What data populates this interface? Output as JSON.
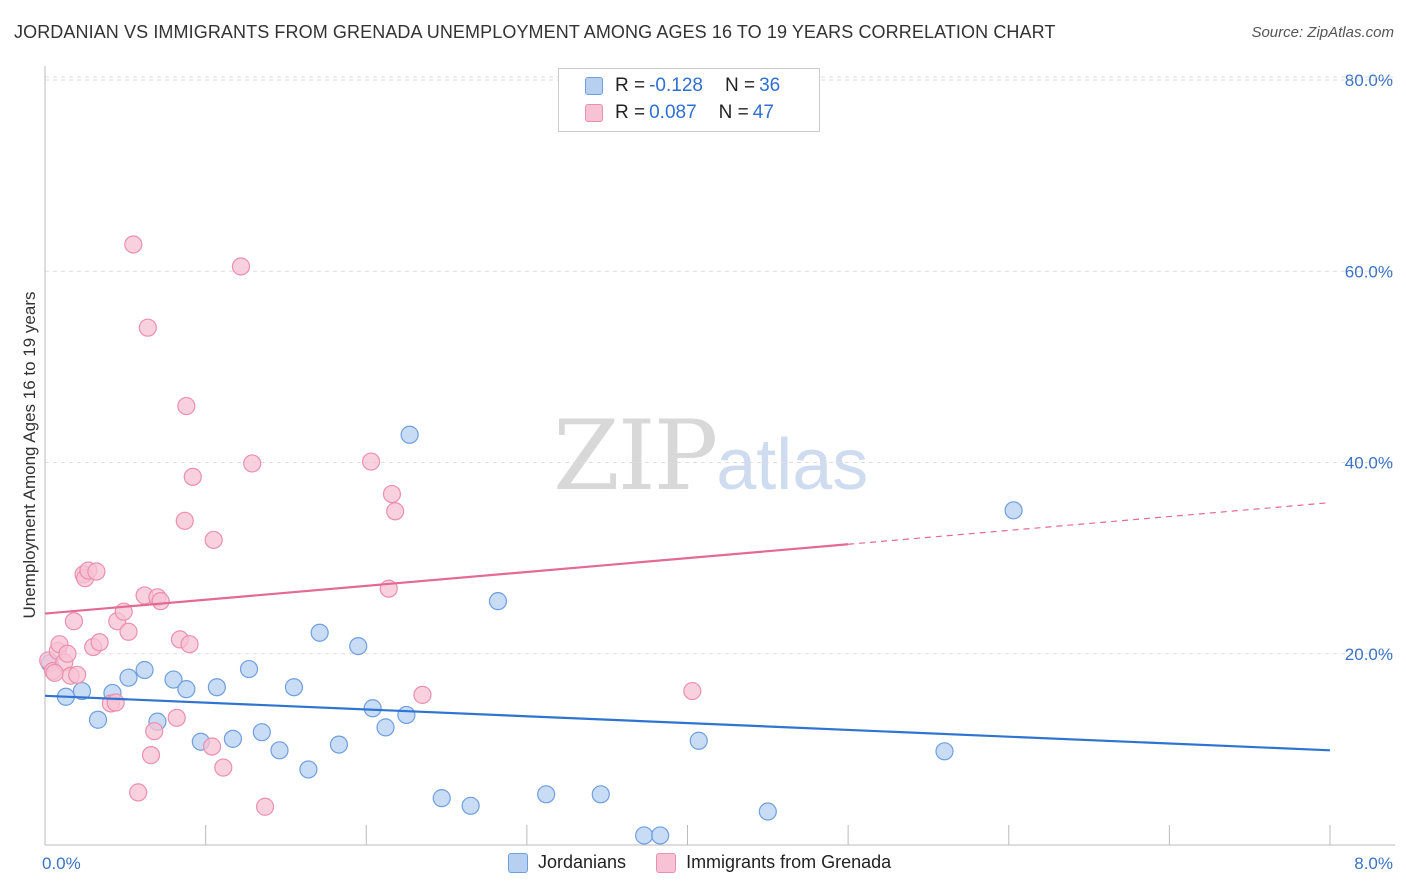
{
  "header": {
    "title": "JORDANIAN VS IMMIGRANTS FROM GRENADA UNEMPLOYMENT AMONG AGES 16 TO 19 YEARS CORRELATION CHART",
    "source": "Source: ZipAtlas.com"
  },
  "watermark": {
    "zip": "ZIP",
    "atlas": "atlas"
  },
  "colors": {
    "blue_fill": "#b7d0f2",
    "blue_stroke": "#6f9fe0",
    "blue_line": "#2f74d0",
    "pink_fill": "#f7c2d3",
    "pink_stroke": "#ec8fad",
    "pink_line": "#e36a93",
    "tick_label": "#3b72c4",
    "grid": "#dddddd"
  },
  "legend": {
    "rows": [
      {
        "r_label": "R =",
        "r_value": "-0.128",
        "n_label": "N =",
        "n_value": "36"
      },
      {
        "r_label": "R =",
        "r_value": "0.087",
        "n_label": "N =",
        "n_value": "47"
      }
    ]
  },
  "bottom_legend": {
    "series1": "Jordanians",
    "series2": "Immigrants from Grenada"
  },
  "chart_data": {
    "type": "scatter",
    "title": "JORDANIAN VS IMMIGRANTS FROM GRENADA UNEMPLOYMENT AMONG AGES 16 TO 19 YEARS CORRELATION CHART",
    "xlabel": "",
    "ylabel": "Unemployment Among Ages 16 to 19 years",
    "xlim": [
      0,
      8
    ],
    "ylim": [
      0,
      80
    ],
    "x_tick_labels": [
      "0.0%",
      "8.0%"
    ],
    "y_ticks": [
      20,
      40,
      60,
      80
    ],
    "y_tick_labels": [
      "20.0%",
      "40.0%",
      "60.0%",
      "80.0%"
    ],
    "grid": true,
    "legend_position": "top-center",
    "series": [
      {
        "name": "Jordanians",
        "R": -0.128,
        "N": 36,
        "trend": {
          "x": [
            0,
            8
          ],
          "y": [
            15.6,
            9.9
          ],
          "dashed_from": null
        },
        "points": [
          [
            0.03,
            19.0
          ],
          [
            0.13,
            15.5
          ],
          [
            0.23,
            16.1
          ],
          [
            0.33,
            13.1
          ],
          [
            0.42,
            15.9
          ],
          [
            0.52,
            17.5
          ],
          [
            0.62,
            18.3
          ],
          [
            0.7,
            12.9
          ],
          [
            0.8,
            17.3
          ],
          [
            0.88,
            16.3
          ],
          [
            0.97,
            10.8
          ],
          [
            1.07,
            16.5
          ],
          [
            1.17,
            11.1
          ],
          [
            1.27,
            18.4
          ],
          [
            1.35,
            11.8
          ],
          [
            1.46,
            9.9
          ],
          [
            1.55,
            16.5
          ],
          [
            1.64,
            7.9
          ],
          [
            1.71,
            22.2
          ],
          [
            1.83,
            10.5
          ],
          [
            1.95,
            20.8
          ],
          [
            2.04,
            14.3
          ],
          [
            2.12,
            12.3
          ],
          [
            2.25,
            13.6
          ],
          [
            2.27,
            42.9
          ],
          [
            2.47,
            4.9
          ],
          [
            2.65,
            4.1
          ],
          [
            2.82,
            25.5
          ],
          [
            3.12,
            5.3
          ],
          [
            3.46,
            5.3
          ],
          [
            3.73,
            1.0
          ],
          [
            3.83,
            1.0
          ],
          [
            4.07,
            10.9
          ],
          [
            4.5,
            3.5
          ],
          [
            5.6,
            9.8
          ],
          [
            6.03,
            35.0
          ]
        ]
      },
      {
        "name": "Immigrants from Grenada",
        "R": 0.087,
        "N": 47,
        "trend": {
          "x": [
            0,
            8
          ],
          "y": [
            24.2,
            35.8
          ],
          "dashed_from": 5.0
        },
        "points": [
          [
            0.02,
            19.3
          ],
          [
            0.05,
            18.2
          ],
          [
            0.08,
            20.3
          ],
          [
            0.09,
            21.0
          ],
          [
            0.12,
            19.1
          ],
          [
            0.14,
            20.0
          ],
          [
            0.16,
            17.7
          ],
          [
            0.18,
            23.4
          ],
          [
            0.2,
            17.8
          ],
          [
            0.24,
            28.3
          ],
          [
            0.25,
            27.9
          ],
          [
            0.27,
            28.7
          ],
          [
            0.3,
            20.7
          ],
          [
            0.32,
            28.6
          ],
          [
            0.34,
            21.2
          ],
          [
            0.41,
            14.8
          ],
          [
            0.44,
            14.9
          ],
          [
            0.45,
            23.4
          ],
          [
            0.49,
            24.4
          ],
          [
            0.52,
            22.3
          ],
          [
            0.55,
            62.8
          ],
          [
            0.58,
            5.5
          ],
          [
            0.62,
            26.1
          ],
          [
            0.64,
            54.1
          ],
          [
            0.66,
            9.4
          ],
          [
            0.68,
            11.9
          ],
          [
            0.7,
            25.9
          ],
          [
            0.72,
            25.5
          ],
          [
            0.82,
            13.3
          ],
          [
            0.84,
            21.5
          ],
          [
            0.87,
            33.9
          ],
          [
            0.88,
            45.9
          ],
          [
            0.9,
            21.0
          ],
          [
            0.92,
            38.5
          ],
          [
            1.04,
            10.3
          ],
          [
            1.05,
            31.9
          ],
          [
            1.11,
            8.1
          ],
          [
            1.22,
            60.5
          ],
          [
            1.29,
            39.9
          ],
          [
            1.37,
            4.0
          ],
          [
            2.03,
            40.1
          ],
          [
            2.14,
            26.8
          ],
          [
            2.16,
            36.7
          ],
          [
            2.18,
            34.9
          ],
          [
            2.35,
            15.7
          ],
          [
            4.03,
            16.1
          ],
          [
            0.06,
            18.0
          ]
        ]
      }
    ]
  }
}
